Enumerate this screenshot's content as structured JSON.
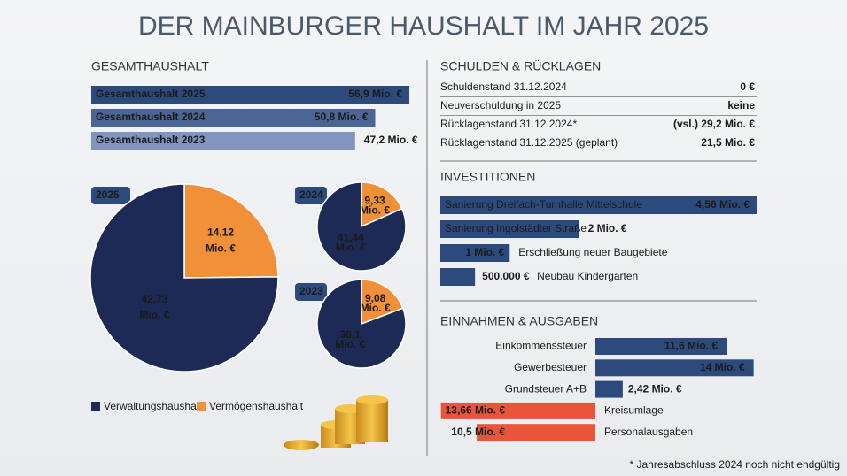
{
  "title": "DER MAINBURGER HAUSHALT IM JAHR 2025",
  "footnote": "* Jahresabschluss 2024 noch nicht endgültig",
  "debt_table": {
    "title": "SCHULDEN & RÜCKLAGEN",
    "rows": [
      [
        "Schuldenstand 31.12.2024",
        "0 €"
      ],
      [
        "Neuverschuldung in 2025",
        "keine"
      ],
      [
        "Rücklagenstand 31.12.2024*",
        "(vsl.) 29,2 Mio. €"
      ],
      [
        "Rücklagenstand 31.12.2025 (geplant)",
        "21,5 Mio. €"
      ]
    ]
  },
  "chart_data": [
    {
      "type": "hbar",
      "title": "GESAMTHAUSHALT",
      "categories": [
        "Gesamthaushalt 2025",
        "Gesamthaushalt 2024",
        "Gesamthaushalt 2023"
      ],
      "values": [
        56.9,
        50.8,
        47.2
      ],
      "value_labels": [
        "56,9 Mio. €",
        "50,8 Mio. €",
        "47,2 Mio. €"
      ],
      "colors": [
        "#2d4a7c",
        "#4b6594",
        "#8195bf"
      ]
    },
    {
      "type": "pie",
      "title": "2025",
      "categories": [
        "Verwaltungshaushalt",
        "Vermögenshaushalt"
      ],
      "values": [
        42.73,
        14.12
      ],
      "value_labels": [
        "42,73 Mio. €",
        "14,12 Mio. €"
      ],
      "colors": [
        "#1c2a55",
        "#f0913a"
      ]
    },
    {
      "type": "pie",
      "title": "2024",
      "categories": [
        "Verwaltungshaushalt",
        "Vermögenshaushalt"
      ],
      "values": [
        41.44,
        9.33
      ],
      "value_labels": [
        "41,44 Mio. €",
        "9,33 Mio. €"
      ],
      "colors": [
        "#1c2a55",
        "#f0913a"
      ]
    },
    {
      "type": "pie",
      "title": "2023",
      "categories": [
        "Verwaltungshaushalt",
        "Vermögenshaushalt"
      ],
      "values": [
        38.1,
        9.08
      ],
      "value_labels": [
        "38,1 Mio. €",
        "9,08 Mio. €"
      ],
      "colors": [
        "#1c2a55",
        "#f0913a"
      ]
    },
    {
      "type": "hbar",
      "title": "INVESTITIONEN",
      "categories": [
        "Sanierung Dreifach-Turnhalle Mittelschule",
        "Sanierung Ingolstädter Straße",
        "Erschließung neuer Baugebiete",
        "Neubau Kindergarten"
      ],
      "values": [
        4560000,
        2000000,
        1000000,
        500000
      ],
      "value_labels": [
        "4,56 Mio. €",
        "2 Mio. €",
        "1 Mio. €",
        "500.000 €"
      ],
      "color": "#2d4a7c"
    },
    {
      "type": "divbar",
      "title": "EINNAHMEN & AUSGABEN",
      "categories": [
        "Einkommenssteuer",
        "Gewerbesteuer",
        "Grundsteuer A+B",
        "Kreisumlage",
        "Personalausgaben"
      ],
      "values": [
        11.6,
        14,
        2.42,
        -13.66,
        -10.5
      ],
      "value_labels": [
        "11,6 Mio. €",
        "14 Mio. €",
        "2,42 Mio. €",
        "13,66 Mio. €",
        "10,5 Mio. €"
      ],
      "colors": [
        "#2d4a7c",
        "#2d4a7c",
        "#2d4a7c",
        "#e8553b",
        "#e8553b"
      ]
    }
  ]
}
